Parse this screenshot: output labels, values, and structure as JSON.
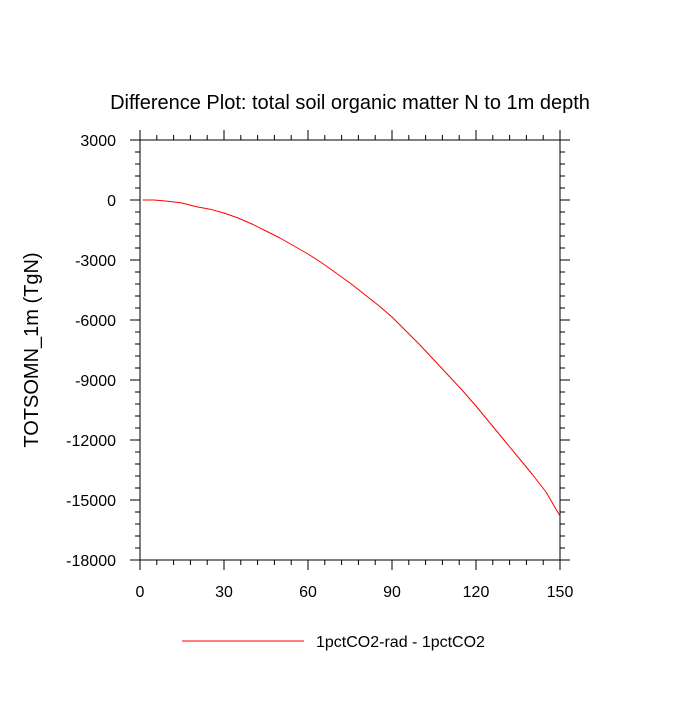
{
  "chart_data": {
    "type": "line",
    "title": "Difference Plot: total soil organic matter N to 1m depth",
    "xlabel": "",
    "ylabel": "TOTSOMN_1m  (TgN)",
    "xlim": [
      0,
      150
    ],
    "ylim": [
      -18000,
      3000
    ],
    "xticks": [
      0,
      30,
      60,
      90,
      120,
      150
    ],
    "yticks": [
      3000,
      0,
      -3000,
      -6000,
      -9000,
      -12000,
      -15000,
      -18000
    ],
    "grid": false,
    "legend_position": "bottom-center",
    "series": [
      {
        "name": "1pctCO2-rad - 1pctCO2",
        "color": "#ff0000",
        "x": [
          1,
          5,
          10,
          15,
          20,
          25,
          30,
          35,
          40,
          45,
          50,
          55,
          60,
          65,
          70,
          75,
          80,
          85,
          90,
          95,
          100,
          105,
          110,
          115,
          120,
          125,
          130,
          135,
          140,
          145,
          150
        ],
        "y": [
          0,
          0,
          -60,
          -150,
          -330,
          -460,
          -650,
          -900,
          -1200,
          -1550,
          -1900,
          -2300,
          -2700,
          -3150,
          -3650,
          -4150,
          -4700,
          -5250,
          -5850,
          -6550,
          -7250,
          -8000,
          -8750,
          -9500,
          -10300,
          -11150,
          -12000,
          -12850,
          -13700,
          -14600,
          -15800
        ]
      }
    ]
  }
}
